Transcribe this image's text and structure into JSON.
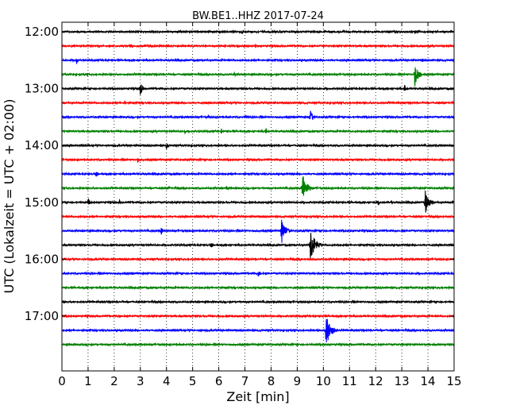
{
  "chart_data": {
    "type": "line",
    "subtype": "dayplot-seismogram",
    "title": "BW.BE1..HHZ 2017-07-24",
    "xlabel": "Zeit  [min]",
    "ylabel": "UTC (Lokalzeit = UTC + 02:00)",
    "xlim": [
      0,
      15
    ],
    "x_ticks": [
      "0",
      "1",
      "2",
      "3",
      "4",
      "5",
      "6",
      "7",
      "8",
      "9",
      "10",
      "11",
      "12",
      "13",
      "14",
      "15"
    ],
    "y_ticks": [
      "12:00",
      "13:00",
      "14:00",
      "15:00",
      "16:00",
      "17:00"
    ],
    "grid": "vertical-dotted",
    "color_cycle": [
      "#000000",
      "#ff0000",
      "#0000ff",
      "#008000"
    ],
    "traces": [
      {
        "start": "12:00",
        "color": "#000000",
        "events": [
          {
            "t": 6.9,
            "amp": 0.25
          },
          {
            "t": 13.5,
            "amp": 0.2
          }
        ]
      },
      {
        "start": "12:15",
        "color": "#ff0000",
        "events": [
          {
            "t": 1.4,
            "amp": 0.2
          },
          {
            "t": 2.6,
            "amp": 0.15
          },
          {
            "t": 7.4,
            "amp": 0.25
          },
          {
            "t": 10.0,
            "amp": 0.15
          }
        ]
      },
      {
        "start": "12:30",
        "color": "#0000ff",
        "events": [
          {
            "t": 0.55,
            "amp": 0.3
          },
          {
            "t": 13.8,
            "amp": 0.2
          }
        ]
      },
      {
        "start": "12:45",
        "color": "#008000",
        "events": [
          {
            "t": 6.6,
            "amp": 0.2
          },
          {
            "t": 13.5,
            "amp": 1.0
          }
        ]
      },
      {
        "start": "13:00",
        "color": "#000000",
        "events": [
          {
            "t": 3.0,
            "amp": 0.55
          },
          {
            "t": 13.1,
            "amp": 0.35
          }
        ]
      },
      {
        "start": "13:15",
        "color": "#ff0000",
        "events": [
          {
            "t": 2.4,
            "amp": 0.2
          }
        ]
      },
      {
        "start": "13:30",
        "color": "#0000ff",
        "events": [
          {
            "t": 5.6,
            "amp": 0.2
          },
          {
            "t": 7.0,
            "amp": 0.2
          },
          {
            "t": 9.5,
            "amp": 0.6
          }
        ]
      },
      {
        "start": "13:45",
        "color": "#008000",
        "events": [
          {
            "t": 4.7,
            "amp": 0.2
          },
          {
            "t": 6.1,
            "amp": 0.25
          },
          {
            "t": 7.8,
            "amp": 0.3
          }
        ]
      },
      {
        "start": "14:00",
        "color": "#000000",
        "events": [
          {
            "t": 2.5,
            "amp": 0.15
          },
          {
            "t": 4.0,
            "amp": 0.35
          }
        ]
      },
      {
        "start": "14:15",
        "color": "#ff0000",
        "events": [
          {
            "t": 2.9,
            "amp": 0.2
          }
        ]
      },
      {
        "start": "14:30",
        "color": "#0000ff",
        "events": [
          {
            "t": 1.3,
            "amp": 0.35
          },
          {
            "t": 4.4,
            "amp": 0.15
          }
        ]
      },
      {
        "start": "14:45",
        "color": "#008000",
        "events": [
          {
            "t": 4.1,
            "amp": 0.25
          },
          {
            "t": 6.3,
            "amp": 0.2
          },
          {
            "t": 9.2,
            "amp": 1.25
          }
        ]
      },
      {
        "start": "15:00",
        "color": "#000000",
        "events": [
          {
            "t": 1.0,
            "amp": 0.4
          },
          {
            "t": 2.2,
            "amp": 0.2
          },
          {
            "t": 12.1,
            "amp": 0.25
          },
          {
            "t": 12.6,
            "amp": 0.2
          },
          {
            "t": 13.9,
            "amp": 1.0
          }
        ]
      },
      {
        "start": "15:15",
        "color": "#ff0000",
        "events": [
          {
            "t": 4.0,
            "amp": 0.1
          }
        ]
      },
      {
        "start": "15:30",
        "color": "#0000ff",
        "events": [
          {
            "t": 3.8,
            "amp": 0.35
          },
          {
            "t": 8.4,
            "amp": 1.05
          },
          {
            "t": 13.0,
            "amp": 0.2
          }
        ]
      },
      {
        "start": "15:45",
        "color": "#000000",
        "events": [
          {
            "t": 5.7,
            "amp": 0.35
          },
          {
            "t": 9.5,
            "amp": 1.4
          }
        ]
      },
      {
        "start": "16:00",
        "color": "#ff0000",
        "events": [
          {
            "t": 8.0,
            "amp": 0.1
          }
        ]
      },
      {
        "start": "16:15",
        "color": "#0000ff",
        "events": [
          {
            "t": 7.5,
            "amp": 0.4
          }
        ]
      },
      {
        "start": "16:30",
        "color": "#008000",
        "events": [
          {
            "t": 8.3,
            "amp": 0.12
          }
        ]
      },
      {
        "start": "16:45",
        "color": "#000000",
        "events": [
          {
            "t": 8.1,
            "amp": 0.15
          }
        ]
      },
      {
        "start": "17:00",
        "color": "#ff0000",
        "events": [
          {
            "t": 2.2,
            "amp": 0.25
          }
        ]
      },
      {
        "start": "17:15",
        "color": "#0000ff",
        "events": [
          {
            "t": 5.3,
            "amp": 0.25
          },
          {
            "t": 10.1,
            "amp": 1.3
          }
        ]
      },
      {
        "start": "17:30",
        "color": "#008000",
        "events": []
      }
    ]
  }
}
